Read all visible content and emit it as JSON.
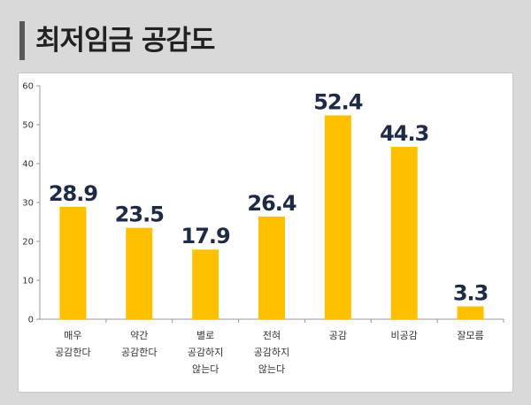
{
  "header": {
    "title": "최저임금 공감도"
  },
  "chart_data": {
    "type": "bar",
    "title": "",
    "xlabel": "",
    "ylabel": "",
    "ylim": [
      0,
      60
    ],
    "yticks": [
      0,
      10,
      20,
      30,
      40,
      50,
      60
    ],
    "grid": false,
    "bar_color": "#ffc000",
    "categories": [
      [
        "매우",
        "공감한다"
      ],
      [
        "약간",
        "공감한다"
      ],
      [
        "별로",
        "공감하지",
        "않는다"
      ],
      [
        "전혀",
        "공감하지",
        "않는다"
      ],
      [
        "공감"
      ],
      [
        "비공감"
      ],
      [
        "잘모름"
      ]
    ],
    "values": [
      28.9,
      23.5,
      17.9,
      26.4,
      52.4,
      44.3,
      3.3
    ]
  }
}
